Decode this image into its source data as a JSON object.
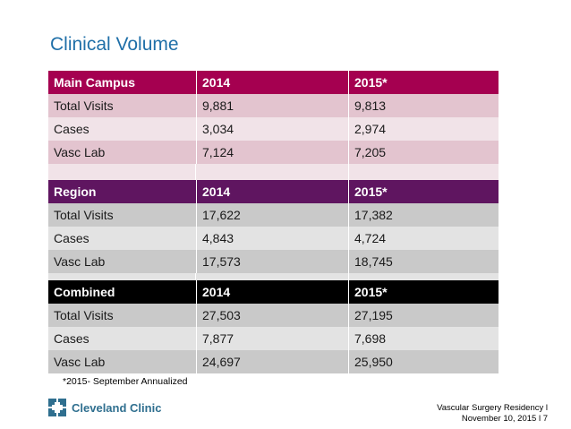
{
  "title": "Clinical Volume",
  "footnote": "*2015- September Annualized",
  "footer": {
    "logo_text": "Cleveland Clinic",
    "line1": "Vascular Surgery Residency  l",
    "line2": "November 10, 2015  l  7"
  },
  "colors": {
    "title": "#1f6fa8",
    "main_campus_header": "#a50050",
    "region_header": "#5f1560",
    "combined_header": "#000000"
  },
  "main_campus": {
    "header": [
      "Main Campus",
      "2014",
      "2015*"
    ],
    "rows": [
      [
        "Total Visits",
        "9,881",
        "9,813"
      ],
      [
        "Cases",
        "3,034",
        "2,974"
      ],
      [
        "Vasc Lab",
        "7,124",
        "7,205"
      ]
    ]
  },
  "region": {
    "header": [
      "Region",
      "2014",
      "2015*"
    ],
    "rows": [
      [
        "Total Visits",
        "17,622",
        "17,382"
      ],
      [
        "Cases",
        "4,843",
        "4,724"
      ],
      [
        "Vasc Lab",
        "17,573",
        "18,745"
      ]
    ]
  },
  "combined": {
    "header": [
      "Combined",
      "2014",
      "2015*"
    ],
    "rows": [
      [
        "Total Visits",
        "27,503",
        "27,195"
      ],
      [
        "Cases",
        "7,877",
        "7,698"
      ],
      [
        "Vasc Lab",
        "24,697",
        "25,950"
      ]
    ]
  }
}
